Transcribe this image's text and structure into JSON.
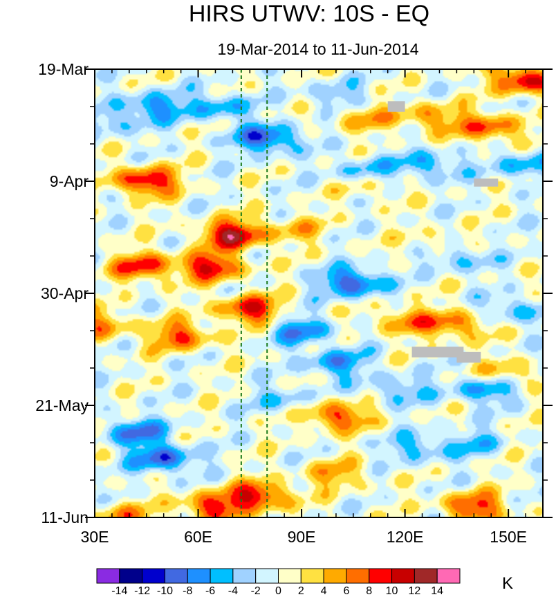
{
  "chart_data": {
    "type": "heatmap",
    "title": "HIRS UTWV: 10S - EQ",
    "subtitle": "19-Mar-2014 to 11-Jun-2014",
    "xlabel": "",
    "ylabel": "",
    "x_axis": {
      "range_deg_east": [
        30,
        160
      ],
      "ticks": [
        {
          "value": 30,
          "label": "30E"
        },
        {
          "value": 60,
          "label": "60E"
        },
        {
          "value": 90,
          "label": "90E"
        },
        {
          "value": 120,
          "label": "120E"
        },
        {
          "value": 150,
          "label": "150E"
        }
      ]
    },
    "y_axis": {
      "range_days_since_start": [
        0,
        84
      ],
      "direction": "time increases downward",
      "ticks": [
        {
          "value": 0,
          "label": "19-Mar"
        },
        {
          "value": 21,
          "label": "9-Apr"
        },
        {
          "value": 42,
          "label": "30-Apr"
        },
        {
          "value": 63,
          "label": "21-May"
        },
        {
          "value": 84,
          "label": "11-Jun"
        }
      ]
    },
    "reference_lines_deg_east": [
      72.5,
      80
    ],
    "colorbar": {
      "unit": "K",
      "levels": [
        -14,
        -12,
        -10,
        -8,
        -6,
        -4,
        -2,
        0,
        2,
        4,
        6,
        8,
        10,
        12,
        14
      ],
      "level_labels": [
        "-14",
        "-12",
        "-10",
        "-8",
        "-6",
        "-4",
        "-2",
        "0",
        "2",
        "4",
        "6",
        "8",
        "10",
        "12",
        "14"
      ],
      "colors": [
        "#8a2be2",
        "#00008b",
        "#0000cd",
        "#4169e1",
        "#1e90ff",
        "#00bfff",
        "#a0d2ff",
        "#d2f5ff",
        "#ffffc8",
        "#ffe141",
        "#ffaa00",
        "#ff6e00",
        "#ff0000",
        "#c80000",
        "#a02828",
        "#ff69b4"
      ]
    },
    "missing_color": "#bdbdbd",
    "anomalies": [
      {
        "lon": 45,
        "day": 21,
        "value": 11
      },
      {
        "lon": 70,
        "day": 31,
        "value": 12
      },
      {
        "lon": 64,
        "day": 37,
        "value": 10
      },
      {
        "lon": 44,
        "day": 37,
        "value": 9
      },
      {
        "lon": 32,
        "day": 48,
        "value": 6
      },
      {
        "lon": 75,
        "day": 45,
        "value": 10
      },
      {
        "lon": 55,
        "day": 50,
        "value": 8
      },
      {
        "lon": 100,
        "day": 65,
        "value": 9
      },
      {
        "lon": 64,
        "day": 82,
        "value": 9
      },
      {
        "lon": 78,
        "day": 80,
        "value": 10
      },
      {
        "lon": 155,
        "day": 2,
        "value": 11
      },
      {
        "lon": 128,
        "day": 9,
        "value": 6
      },
      {
        "lon": 145,
        "day": 11,
        "value": 8
      },
      {
        "lon": 108,
        "day": 9,
        "value": 5
      },
      {
        "lon": 135,
        "day": 48,
        "value": 7
      },
      {
        "lon": 120,
        "day": 47,
        "value": 6
      },
      {
        "lon": 150,
        "day": 57,
        "value": 5
      },
      {
        "lon": 140,
        "day": 82,
        "value": 9
      },
      {
        "lon": 100,
        "day": 76,
        "value": 5
      },
      {
        "lon": 110,
        "day": 22,
        "value": 3
      },
      {
        "lon": 88,
        "day": 30,
        "value": 4
      },
      {
        "lon": 38,
        "day": 84,
        "value": 6
      },
      {
        "lon": 130,
        "day": 33,
        "value": 4
      },
      {
        "lon": 47,
        "day": 7,
        "value": -7
      },
      {
        "lon": 80,
        "day": 13,
        "value": -10
      },
      {
        "lon": 66,
        "day": 7,
        "value": -6
      },
      {
        "lon": 50,
        "day": 73,
        "value": -9
      },
      {
        "lon": 42,
        "day": 68,
        "value": -8
      },
      {
        "lon": 100,
        "day": 55,
        "value": -7
      },
      {
        "lon": 90,
        "day": 49,
        "value": -7
      },
      {
        "lon": 105,
        "day": 40,
        "value": -10
      },
      {
        "lon": 108,
        "day": 19,
        "value": -5
      },
      {
        "lon": 127,
        "day": 18,
        "value": -6
      },
      {
        "lon": 135,
        "day": 35,
        "value": -6
      },
      {
        "lon": 143,
        "day": 60,
        "value": -7
      },
      {
        "lon": 152,
        "day": 45,
        "value": -5
      },
      {
        "lon": 124,
        "day": 71,
        "value": -5
      },
      {
        "lon": 118,
        "day": 60,
        "value": -5
      },
      {
        "lon": 155,
        "day": 18,
        "value": -6
      },
      {
        "lon": 35,
        "day": 10,
        "value": -4
      },
      {
        "lon": 100,
        "day": 5,
        "value": -4
      },
      {
        "lon": 85,
        "day": 62,
        "value": -4
      },
      {
        "lon": 140,
        "day": 70,
        "value": -4
      }
    ],
    "missing_regions": [
      {
        "lon": [
          115,
          120
        ],
        "day": [
          6,
          8
        ]
      },
      {
        "lon": [
          140,
          147
        ],
        "day": [
          20.5,
          22
        ]
      },
      {
        "lon": [
          122,
          137
        ],
        "day": [
          52,
          54
        ]
      },
      {
        "lon": [
          135,
          142
        ],
        "day": [
          53,
          55
        ]
      }
    ]
  }
}
